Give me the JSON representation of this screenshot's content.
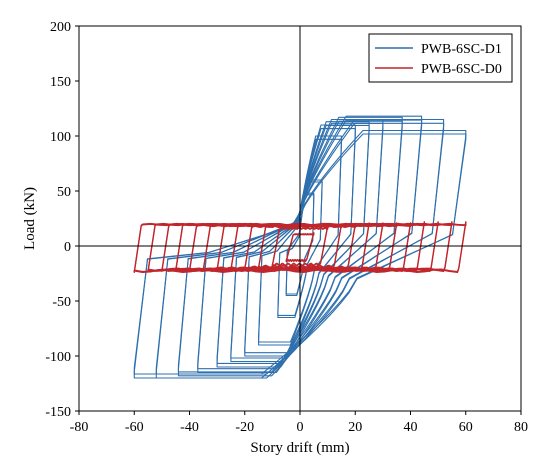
{
  "chart_data": {
    "type": "line",
    "xlabel": "Story drift (mm)",
    "ylabel": "Load (kN)",
    "xlim": [
      -80,
      80
    ],
    "ylim": [
      -150,
      200
    ],
    "x_ticks": [
      -80,
      -60,
      -40,
      -20,
      0,
      20,
      40,
      60,
      80
    ],
    "y_ticks": [
      -150,
      -100,
      -50,
      0,
      50,
      100,
      150,
      200
    ],
    "x_tick_labels": [
      "-80",
      "-60",
      "-40",
      "-20",
      "0",
      "20",
      "40",
      "60",
      "80"
    ],
    "y_tick_labels": [
      "-150",
      "-100",
      "-50",
      "0",
      "50",
      "100",
      "150",
      "200"
    ],
    "grid": false,
    "zero_lines": true,
    "legend_position": "top-right",
    "series": [
      {
        "name": "PWB-6SC-D1",
        "color": "#2e6fad",
        "loops": [
          {
            "d": 5,
            "peak": 48,
            "neg_peak": -45
          },
          {
            "d": 8,
            "peak": 60,
            "neg_peak": -65
          },
          {
            "d": 15,
            "peak": 100,
            "neg_peak": -90
          },
          {
            "d": 20,
            "peak": 110,
            "neg_peak": -100
          },
          {
            "d": 25,
            "peak": 113,
            "neg_peak": -105
          },
          {
            "d": 30,
            "peak": 115,
            "neg_peak": -110
          },
          {
            "d": 37,
            "peak": 117,
            "neg_peak": -115
          },
          {
            "d": 44,
            "peak": 118,
            "neg_peak": -118
          },
          {
            "d": 52,
            "peak": 115,
            "neg_peak": -120
          },
          {
            "d": 60,
            "peak": 105,
            "neg_peak": -120
          }
        ]
      },
      {
        "name": "PWB-6SC-D0",
        "color": "#c0262c",
        "loops": [
          {
            "d": 5,
            "peak": 12,
            "neg_peak": -14
          },
          {
            "d": 10,
            "peak": 18,
            "neg_peak": -18
          },
          {
            "d": 15,
            "peak": 20,
            "neg_peak": -20
          },
          {
            "d": 20,
            "peak": 20,
            "neg_peak": -21
          },
          {
            "d": 25,
            "peak": 21,
            "neg_peak": -22
          },
          {
            "d": 30,
            "peak": 21,
            "neg_peak": -22
          },
          {
            "d": 35,
            "peak": 21,
            "neg_peak": -22
          },
          {
            "d": 40,
            "peak": 21,
            "neg_peak": -23
          },
          {
            "d": 45,
            "peak": 22,
            "neg_peak": -23
          },
          {
            "d": 50,
            "peak": 22,
            "neg_peak": -23
          },
          {
            "d": 55,
            "peak": 22,
            "neg_peak": -23
          },
          {
            "d": 60,
            "peak": 22,
            "neg_peak": -24
          }
        ]
      }
    ]
  }
}
